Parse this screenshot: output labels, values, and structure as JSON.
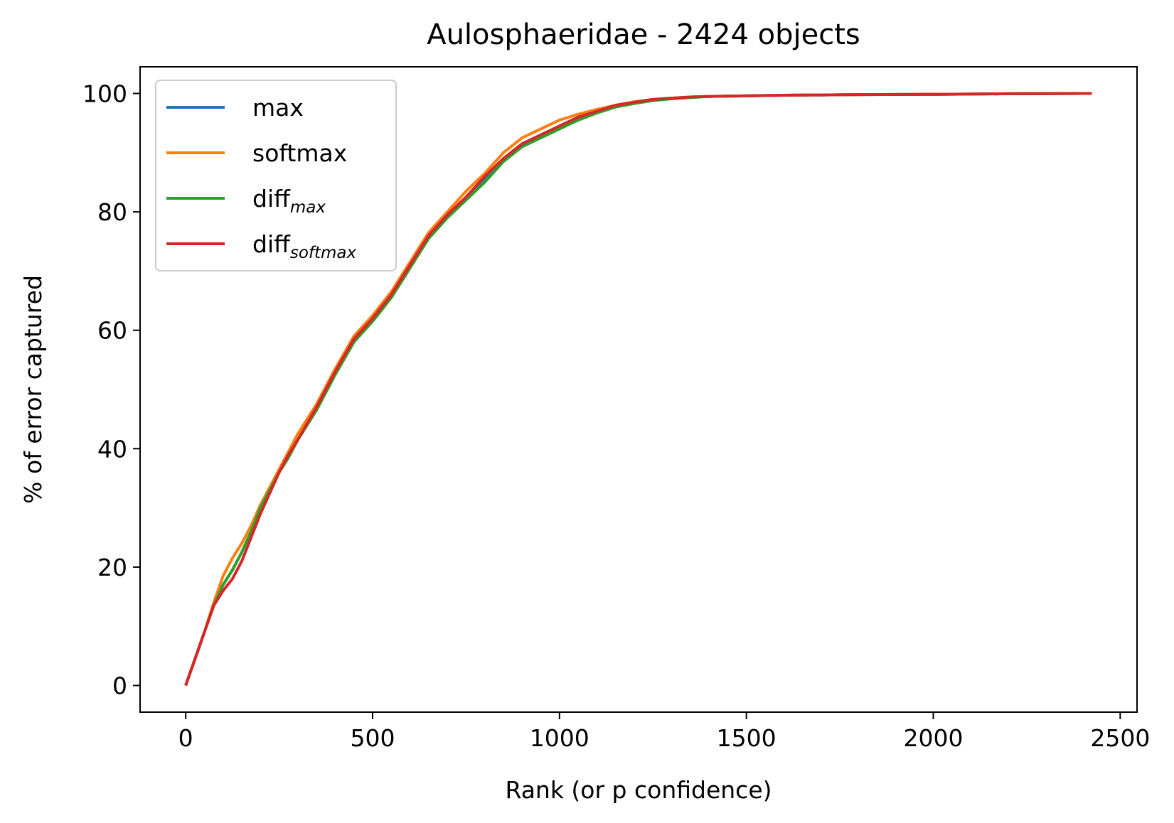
{
  "chart_data": {
    "type": "line",
    "title": "Aulosphaeridae - 2424 objects",
    "xlabel": "Rank (or p confidence)",
    "ylabel": "% of error captured",
    "xlim": [
      -122,
      2545
    ],
    "ylim": [
      -4.5,
      104.5
    ],
    "xticks": [
      0,
      500,
      1000,
      1500,
      2000,
      2500
    ],
    "yticks": [
      0,
      20,
      40,
      60,
      80,
      100
    ],
    "xtick_labels": [
      "0",
      "500",
      "1000",
      "1500",
      "2000",
      "2500"
    ],
    "ytick_labels": [
      "0",
      "20",
      "40",
      "60",
      "80",
      "100"
    ],
    "grid": false,
    "legend_position": "top-left",
    "series": [
      {
        "name": "max",
        "name_sub": "",
        "color": "#1f77b4",
        "x": [
          0,
          25,
          50,
          75,
          100,
          125,
          150,
          175,
          200,
          225,
          250,
          275,
          300,
          350,
          400,
          450,
          500,
          550,
          600,
          650,
          700,
          750,
          800,
          850,
          900,
          950,
          1000,
          1050,
          1100,
          1150,
          1200,
          1250,
          1300,
          1350,
          1400,
          1500,
          1600,
          1700,
          1800,
          2000,
          2100,
          2200,
          2424
        ],
        "y": [
          0,
          4.5,
          9,
          13.5,
          17,
          19.5,
          22.5,
          26,
          29.5,
          33,
          36,
          39,
          41.5,
          47,
          53,
          58.5,
          62,
          66,
          71,
          76,
          79.5,
          82.5,
          85.5,
          89,
          91.5,
          93,
          94.5,
          96,
          97,
          98,
          98.5,
          99,
          99.2,
          99.4,
          99.5,
          99.6,
          99.7,
          99.75,
          99.8,
          99.85,
          99.9,
          99.95,
          100
        ]
      },
      {
        "name": "softmax",
        "name_sub": "",
        "color": "#ff7f0e",
        "x": [
          0,
          25,
          50,
          75,
          100,
          125,
          150,
          175,
          200,
          225,
          250,
          275,
          300,
          350,
          400,
          450,
          500,
          550,
          600,
          650,
          700,
          750,
          800,
          850,
          900,
          950,
          1000,
          1050,
          1100,
          1150,
          1200,
          1250,
          1300,
          1350,
          1400,
          1500,
          1600,
          1700,
          1800,
          2000,
          2100,
          2200,
          2424
        ],
        "y": [
          0,
          4.5,
          9,
          14,
          18.5,
          21.5,
          24,
          27,
          30.5,
          33.5,
          36.5,
          39.5,
          42.5,
          47.5,
          53.5,
          59,
          62.5,
          66.5,
          71.5,
          76.5,
          80,
          83.5,
          86.5,
          90,
          92.5,
          94,
          95.5,
          96.5,
          97.3,
          98,
          98.6,
          99,
          99.2,
          99.4,
          99.5,
          99.6,
          99.7,
          99.75,
          99.8,
          99.85,
          99.9,
          99.95,
          100
        ]
      },
      {
        "name": "diff",
        "name_sub": "max",
        "color": "#2ca02c",
        "x": [
          0,
          25,
          50,
          75,
          100,
          125,
          150,
          175,
          200,
          225,
          250,
          275,
          300,
          350,
          400,
          450,
          500,
          550,
          600,
          650,
          700,
          750,
          800,
          850,
          900,
          950,
          1000,
          1050,
          1100,
          1150,
          1200,
          1250,
          1300,
          1350,
          1400,
          1500,
          1600,
          1700,
          1800,
          2000,
          2100,
          2200,
          2424
        ],
        "y": [
          0,
          4.5,
          9,
          13.5,
          17,
          19.5,
          22.5,
          26,
          30,
          33,
          36,
          38.5,
          41.5,
          46.5,
          52.5,
          58,
          61.5,
          65.5,
          70.5,
          75.5,
          79,
          82,
          85,
          88.5,
          91,
          92.5,
          94,
          95.5,
          96.7,
          97.7,
          98.3,
          98.8,
          99.1,
          99.3,
          99.5,
          99.6,
          99.7,
          99.75,
          99.8,
          99.85,
          99.9,
          99.95,
          100
        ]
      },
      {
        "name": "diff",
        "name_sub": "softmax",
        "color": "#d62728",
        "x": [
          0,
          25,
          50,
          75,
          100,
          125,
          150,
          175,
          200,
          225,
          250,
          275,
          300,
          350,
          400,
          450,
          500,
          550,
          600,
          650,
          700,
          750,
          800,
          850,
          900,
          950,
          1000,
          1050,
          1100,
          1150,
          1200,
          1250,
          1300,
          1350,
          1400,
          1500,
          1600,
          1700,
          1800,
          2000,
          2100,
          2200,
          2424
        ],
        "y": [
          0,
          4.5,
          9,
          13.5,
          16,
          18,
          21,
          25,
          29,
          32.5,
          36,
          39,
          41.5,
          47,
          53,
          58.5,
          62,
          66,
          71,
          76,
          79.5,
          82.5,
          86,
          89,
          91.5,
          93,
          94.5,
          96,
          97,
          98,
          98.5,
          99,
          99.2,
          99.4,
          99.5,
          99.6,
          99.7,
          99.75,
          99.8,
          99.85,
          99.9,
          99.95,
          100
        ]
      }
    ]
  }
}
